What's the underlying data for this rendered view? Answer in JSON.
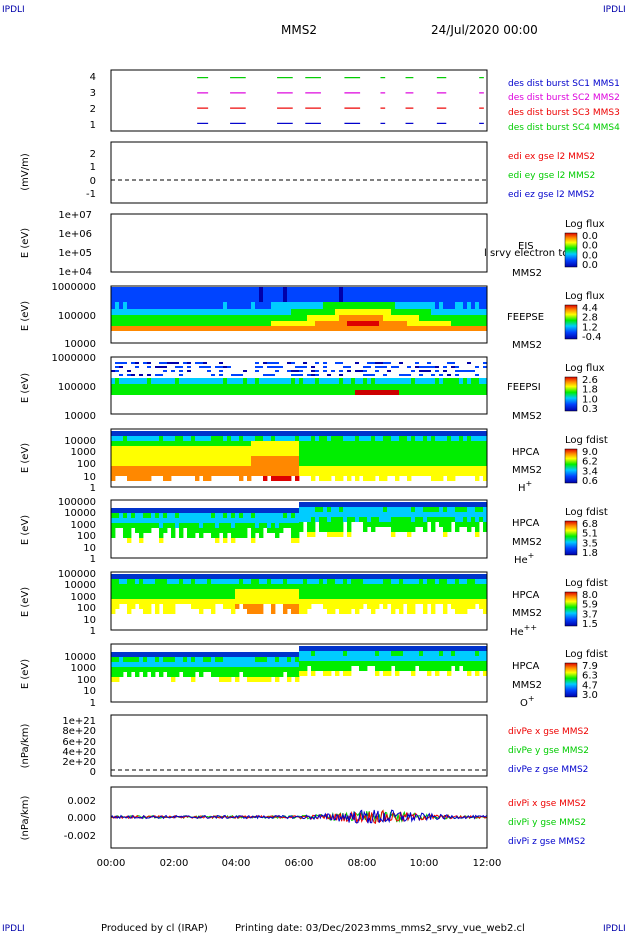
{
  "corner_labels": [
    "IPDLI",
    "IPDLI",
    "IPDLI",
    "IPDLI"
  ],
  "header": {
    "spacecraft": "MMS2",
    "date": "24/Jul/2020 00:00"
  },
  "footer": {
    "produced_by": "Produced by cl (IRAP)",
    "printing_date": "Printing date: 03/Dec/2023",
    "script": "mms_mms2_srvy_vue_web2.cl"
  },
  "colors": {
    "red": "#ee0000",
    "green": "#00cc00",
    "blue": "#0000cc",
    "magenta": "#dd00dd",
    "orange": "#ff8c00"
  },
  "chart_data": [
    {
      "type": "line",
      "panel": "burst",
      "y_ticks": [
        "1",
        "2",
        "3",
        "4"
      ],
      "ylim": [
        0.5,
        4.5
      ],
      "legend": [
        "des dist burst SC1 MMS1",
        "des dist burst SC2 MMS2",
        "des dist burst SC3 MMS3",
        "des dist burst SC4 MMS4"
      ],
      "series": [
        {
          "level": 4,
          "color": "#00cc00",
          "segments": [
            [
              2.75,
              3.1
            ],
            [
              3.8,
              4.3
            ],
            [
              5.3,
              5.8
            ],
            [
              6.2,
              6.7
            ],
            [
              7.45,
              7.95
            ],
            [
              8.6,
              8.75
            ],
            [
              9.4,
              9.65
            ],
            [
              10.4,
              10.7
            ],
            [
              11.75,
              11.9
            ]
          ]
        },
        {
          "level": 3,
          "color": "#dd00dd",
          "segments": [
            [
              2.75,
              3.1
            ],
            [
              3.8,
              4.3
            ],
            [
              5.3,
              5.8
            ],
            [
              6.2,
              6.7
            ],
            [
              7.45,
              7.95
            ],
            [
              8.6,
              8.75
            ],
            [
              9.4,
              9.65
            ],
            [
              10.4,
              10.7
            ],
            [
              11.75,
              11.9
            ]
          ]
        },
        {
          "level": 2,
          "color": "#ee0000",
          "segments": [
            [
              2.75,
              3.1
            ],
            [
              3.8,
              4.3
            ],
            [
              5.3,
              5.8
            ],
            [
              6.2,
              6.7
            ],
            [
              7.45,
              7.95
            ],
            [
              8.6,
              8.75
            ],
            [
              9.4,
              9.65
            ],
            [
              10.4,
              10.7
            ],
            [
              11.75,
              11.9
            ]
          ]
        },
        {
          "level": 1,
          "color": "#0000cc",
          "segments": [
            [
              2.75,
              3.1
            ],
            [
              3.8,
              4.3
            ],
            [
              5.3,
              5.8
            ],
            [
              6.2,
              6.7
            ],
            [
              7.45,
              7.95
            ],
            [
              8.6,
              8.75
            ],
            [
              9.4,
              9.65
            ],
            [
              10.4,
              10.7
            ],
            [
              11.75,
              11.9
            ]
          ]
        }
      ]
    },
    {
      "type": "line",
      "panel": "edi",
      "ylabel": "(mV/m)",
      "y_ticks": [
        "-1",
        "0",
        "1",
        "2"
      ],
      "ylim": [
        -1.6,
        2.8
      ],
      "legend": [
        "edi ex gse l2 MMS2",
        "edi ey gse l2 MMS2",
        "edi ez gse l2 MMS2"
      ]
    },
    {
      "type": "heatmap",
      "panel": "eis",
      "ylabel": "E (eV)",
      "y_ticks": [
        "1e+04",
        "1e+05",
        "1e+06",
        "1e+07"
      ],
      "instrument": [
        "EIS",
        "MMS2"
      ],
      "overlay_text": "l srvy electron to",
      "colorbar": {
        "title": "Log flux",
        "ticks": [
          "0.0",
          "0.0",
          "0.0",
          "0.0"
        ]
      }
    },
    {
      "type": "heatmap",
      "panel": "feepse",
      "ylabel": "E (eV)",
      "y_ticks": [
        "10000",
        "100000",
        "1000000"
      ],
      "instrument": [
        "FEEPSE",
        "MMS2"
      ],
      "colorbar": {
        "title": "Log flux",
        "ticks": [
          "4.4",
          "2.8",
          "1.2",
          "-0.4"
        ]
      }
    },
    {
      "type": "heatmap",
      "panel": "feepsi",
      "ylabel": "E (eV)",
      "y_ticks": [
        "10000",
        "100000",
        "1000000"
      ],
      "instrument": [
        "FEEPSI",
        "MMS2"
      ],
      "colorbar": {
        "title": "Log flux",
        "ticks": [
          "2.6",
          "1.8",
          "1.0",
          "0.3"
        ]
      }
    },
    {
      "type": "heatmap",
      "panel": "hpca_h",
      "ylabel": "E (eV)",
      "y_ticks": [
        "1",
        "10",
        "100",
        "1000",
        "10000"
      ],
      "instrument": [
        "HPCA",
        "MMS2"
      ],
      "species": "H",
      "charge": "+",
      "colorbar": {
        "title": "Log fdist",
        "ticks": [
          "9.0",
          "6.2",
          "3.4",
          "0.6"
        ]
      }
    },
    {
      "type": "heatmap",
      "panel": "hpca_he1",
      "ylabel": "E (eV)",
      "y_ticks": [
        "1",
        "10",
        "100",
        "1000",
        "10000",
        "100000"
      ],
      "instrument": [
        "HPCA",
        "MMS2"
      ],
      "species": "He",
      "charge": "+",
      "colorbar": {
        "title": "Log fdist",
        "ticks": [
          "6.8",
          "5.1",
          "3.5",
          "1.8"
        ]
      }
    },
    {
      "type": "heatmap",
      "panel": "hpca_he2",
      "ylabel": "E (eV)",
      "y_ticks": [
        "1",
        "10",
        "100",
        "1000",
        "10000",
        "100000"
      ],
      "instrument": [
        "HPCA",
        "MMS2"
      ],
      "species": "He",
      "charge": "++",
      "colorbar": {
        "title": "Log fdist",
        "ticks": [
          "8.0",
          "5.9",
          "3.7",
          "1.5"
        ]
      }
    },
    {
      "type": "heatmap",
      "panel": "hpca_o",
      "ylabel": "E (eV)",
      "y_ticks": [
        "1",
        "10",
        "100",
        "1000",
        "10000"
      ],
      "instrument": [
        "HPCA",
        "MMS2"
      ],
      "species": "O",
      "charge": "+",
      "colorbar": {
        "title": "Log fdist",
        "ticks": [
          "7.9",
          "6.3",
          "4.7",
          "3.0"
        ]
      }
    },
    {
      "type": "line",
      "panel": "divpe",
      "ylabel": "(nPa/km)",
      "y_ticks": [
        "0",
        "2e+20",
        "4e+20",
        "6e+20",
        "8e+20",
        "1e+21"
      ],
      "ylim": [
        -1.2e+20,
        1.08e+21
      ],
      "legend": [
        "divPe x gse MMS2",
        "divPe y gse MMS2",
        "divPe z gse MMS2"
      ]
    },
    {
      "type": "line",
      "panel": "divpi",
      "ylabel": "(nPa/km)",
      "y_ticks": [
        "-0.002",
        "0.000",
        "0.002"
      ],
      "ylim": [
        -0.0035,
        0.0035
      ],
      "legend": [
        "divPi x gse MMS2",
        "divPi y gse MMS2",
        "divPi z gse MMS2"
      ]
    }
  ],
  "x_axis": {
    "ticks": [
      "00:00",
      "02:00",
      "04:00",
      "06:00",
      "08:00",
      "10:00",
      "12:00"
    ],
    "range_hours": [
      0,
      12
    ]
  }
}
